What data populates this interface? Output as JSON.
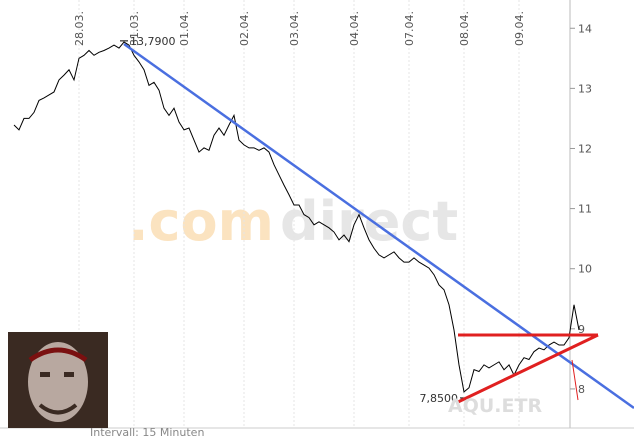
{
  "chart_data": {
    "type": "line",
    "symbol": "AQU.ETR",
    "watermark_a": ".com",
    "watermark_b": "direct",
    "interval": "Intervall: 15 Minuten",
    "categories": [
      null,
      null,
      null,
      null,
      null,
      null,
      null,
      null,
      null,
      null,
      null,
      null,
      null,
      "28.03.",
      null,
      null,
      null,
      null,
      null,
      null,
      null,
      null,
      null,
      null,
      "31.03.",
      null,
      null,
      null,
      null,
      null,
      null,
      null,
      null,
      null,
      "01.04.",
      null,
      null,
      null,
      null,
      null,
      null,
      null,
      null,
      null,
      null,
      null,
      "02.04.",
      null,
      null,
      null,
      null,
      null,
      null,
      null,
      null,
      null,
      "03.04.",
      null,
      null,
      null,
      null,
      null,
      null,
      null,
      null,
      null,
      null,
      null,
      "04.04.",
      null,
      null,
      null,
      null,
      null,
      null,
      null,
      null,
      null,
      null,
      "07.04.",
      null,
      null,
      null,
      null,
      null,
      null,
      null,
      null,
      null,
      null,
      "08.04.",
      null,
      null,
      null,
      null,
      null,
      null,
      null,
      null,
      null,
      null,
      "09.04.",
      null,
      null,
      null,
      null,
      null,
      null,
      null,
      null,
      null,
      null,
      null,
      null
    ],
    "values": [
      12.39,
      12.31,
      12.5,
      12.5,
      12.6,
      12.8,
      12.84,
      12.89,
      12.94,
      13.14,
      13.22,
      13.31,
      13.14,
      13.5,
      13.55,
      13.63,
      13.55,
      13.6,
      13.63,
      13.67,
      13.72,
      13.67,
      13.77,
      13.72,
      13.55,
      13.44,
      13.31,
      13.05,
      13.1,
      12.97,
      12.67,
      12.55,
      12.67,
      12.44,
      12.31,
      12.34,
      12.14,
      11.94,
      12.01,
      11.97,
      12.22,
      12.34,
      12.22,
      12.39,
      12.55,
      12.14,
      12.06,
      12.01,
      12.01,
      11.97,
      12.01,
      11.94,
      11.73,
      11.56,
      11.39,
      11.23,
      11.06,
      11.06,
      10.9,
      10.85,
      10.73,
      10.78,
      10.73,
      10.68,
      10.61,
      10.48,
      10.56,
      10.45,
      10.73,
      10.9,
      10.68,
      10.48,
      10.34,
      10.23,
      10.18,
      10.23,
      10.28,
      10.18,
      10.11,
      10.11,
      10.18,
      10.11,
      10.06,
      10.01,
      9.9,
      9.73,
      9.65,
      9.4,
      8.98,
      8.4,
      7.95,
      8.02,
      8.32,
      8.29,
      8.4,
      8.35,
      8.4,
      8.45,
      8.32,
      8.4,
      8.23,
      8.4,
      8.52,
      8.49,
      8.62,
      8.68,
      8.65,
      8.73,
      8.78,
      8.73,
      8.73,
      8.85,
      9.4,
      8.98
    ],
    "color": "#000000",
    "high": {
      "value": 13.79,
      "label": "13,7900"
    },
    "low": {
      "value": 7.85,
      "label": "7,8500"
    },
    "ylim": [
      7.35,
      14.47
    ],
    "yticks": [
      8,
      9,
      10,
      11,
      12,
      13,
      14
    ]
  }
}
